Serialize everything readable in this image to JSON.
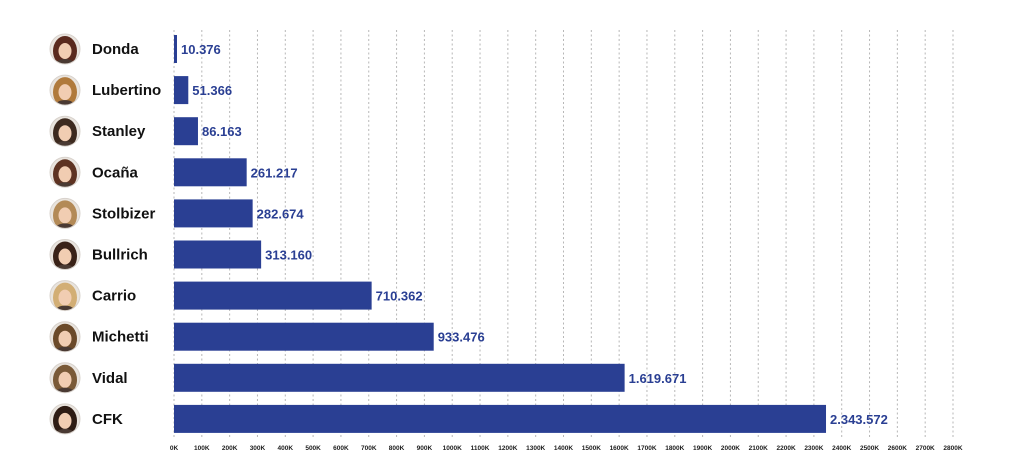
{
  "colors": {
    "bar": "#2a3f93",
    "value_label": "#2a3f93",
    "grid": "#b7b7b7"
  },
  "chart_data": {
    "type": "bar",
    "orientation": "horizontal",
    "categories": [
      "Donda",
      "Lubertino",
      "Stanley",
      "Ocaña",
      "Stolbizer",
      "Bullrich",
      "Carrio",
      "Michetti",
      "Vidal",
      "CFK"
    ],
    "values": [
      10376,
      51366,
      86163,
      261217,
      282674,
      313160,
      710362,
      933476,
      1619671,
      2343572
    ],
    "value_labels": [
      "10.376",
      "51.366",
      "86.163",
      "261.217",
      "282.674",
      "313.160",
      "710.362",
      "933.476",
      "1.619.671",
      "2.343.572"
    ],
    "xlim": [
      0,
      2800000
    ],
    "x_ticks": [
      0,
      100000,
      200000,
      300000,
      400000,
      500000,
      600000,
      700000,
      800000,
      900000,
      1000000,
      1100000,
      1200000,
      1300000,
      1400000,
      1500000,
      1600000,
      1700000,
      1800000,
      1900000,
      2000000,
      2100000,
      2200000,
      2300000,
      2400000,
      2500000,
      2600000,
      2700000,
      2800000
    ],
    "x_tick_labels": [
      "0K",
      "100K",
      "200K",
      "300K",
      "400K",
      "500K",
      "600K",
      "700K",
      "800K",
      "900K",
      "1000K",
      "1100K",
      "1200K",
      "1300K",
      "1400K",
      "1500K",
      "1600K",
      "1700K",
      "1800K",
      "1900K",
      "2000K",
      "2100K",
      "2200K",
      "2300K",
      "2400K",
      "2500K",
      "2600K",
      "2700K",
      "2800K"
    ],
    "grid": "vertical dashed",
    "legend": "none",
    "category_icons": "avatar"
  }
}
